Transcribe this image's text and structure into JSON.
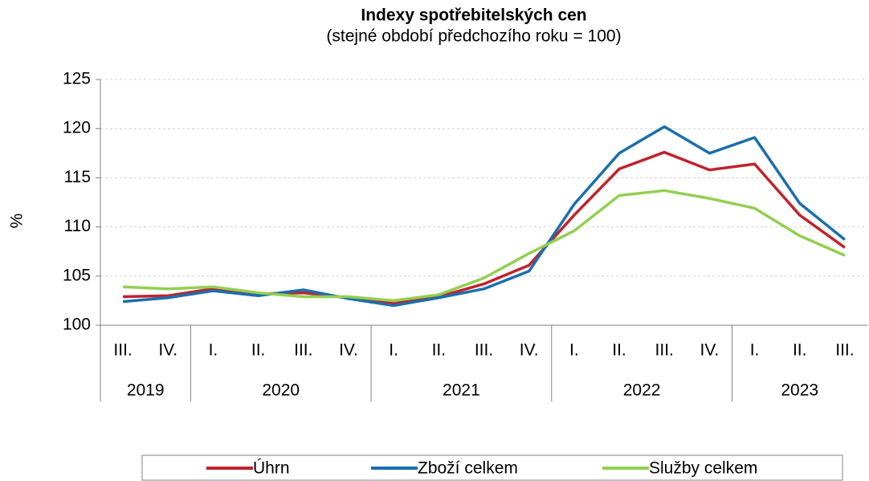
{
  "chart_data": {
    "type": "line",
    "title": "Indexy spotřebitelských cen",
    "subtitle": "(stejné období předchozího roku = 100)",
    "y_label": "%",
    "categories": [
      "III.",
      "IV.",
      "I.",
      "II.",
      "III.",
      "IV.",
      "I.",
      "II.",
      "III.",
      "IV.",
      "I.",
      "II.",
      "III.",
      "IV.",
      "I.",
      "II.",
      "III."
    ],
    "category_groups": [
      {
        "label": "2019",
        "count": 2
      },
      {
        "label": "2020",
        "count": 4
      },
      {
        "label": "2021",
        "count": 4
      },
      {
        "label": "2022",
        "count": 4
      },
      {
        "label": "2023",
        "count": 3
      }
    ],
    "series": [
      {
        "name": "Úhrn",
        "color": "#c0232c",
        "values": [
          102.9,
          103.0,
          103.7,
          103.2,
          103.3,
          102.8,
          102.2,
          102.9,
          104.2,
          106.1,
          111.2,
          115.9,
          117.6,
          115.8,
          116.4,
          111.2,
          107.9
        ]
      },
      {
        "name": "Zboží celkem",
        "color": "#1a6faf",
        "values": [
          102.4,
          102.8,
          103.5,
          103.0,
          103.6,
          102.7,
          102.0,
          102.8,
          103.7,
          105.5,
          112.3,
          117.5,
          120.2,
          117.5,
          119.1,
          112.4,
          108.7
        ]
      },
      {
        "name": "Služby celkem",
        "color": "#92d050",
        "values": [
          103.9,
          103.7,
          103.9,
          103.3,
          102.9,
          102.9,
          102.5,
          103.1,
          104.8,
          107.3,
          109.6,
          113.2,
          113.7,
          112.9,
          111.9,
          109.1,
          107.1
        ]
      }
    ],
    "ylim": [
      100,
      125
    ],
    "yticks": [
      100,
      105,
      110,
      115,
      120,
      125
    ],
    "grid": true,
    "legend": "bottom"
  }
}
